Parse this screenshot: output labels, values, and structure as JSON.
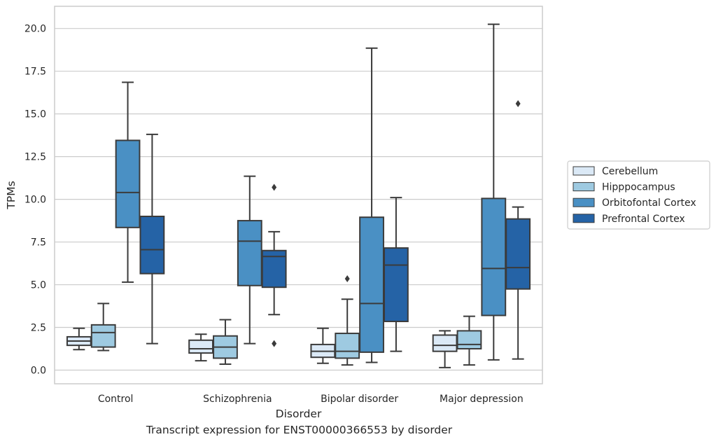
{
  "chart_data": {
    "type": "boxplot",
    "xlabel": "Disorder",
    "ylabel": "TPMs",
    "caption": "Transcript expression for ENST00000366553 by disorder",
    "categories": [
      "Control",
      "Schizophrenia",
      "Bipolar disorder",
      "Major depression"
    ],
    "ylim": [
      -0.8,
      21.3
    ],
    "yticks": [
      "0.0",
      "2.5",
      "5.0",
      "7.5",
      "10.0",
      "12.5",
      "15.0",
      "17.5",
      "20.0"
    ],
    "ytick_values": [
      0,
      2.5,
      5,
      7.5,
      10,
      12.5,
      15,
      17.5,
      20
    ],
    "grid": "horizontal",
    "legend_position": "right",
    "series": [
      {
        "name": "Cerebellum",
        "color": "#dbe9f6",
        "boxes": [
          {
            "min": 1.2,
            "q1": 1.45,
            "median": 1.7,
            "q3": 1.95,
            "max": 2.45,
            "outliers": []
          },
          {
            "min": 0.55,
            "q1": 1.0,
            "median": 1.25,
            "q3": 1.75,
            "max": 2.1,
            "outliers": []
          },
          {
            "min": 0.4,
            "q1": 0.75,
            "median": 1.1,
            "q3": 1.5,
            "max": 2.45,
            "outliers": []
          },
          {
            "min": 0.15,
            "q1": 1.1,
            "median": 1.45,
            "q3": 2.05,
            "max": 2.3,
            "outliers": []
          }
        ]
      },
      {
        "name": "Hipppocampus",
        "color": "#9ecae1",
        "boxes": [
          {
            "min": 1.15,
            "q1": 1.35,
            "median": 2.2,
            "q3": 2.65,
            "max": 3.9,
            "outliers": []
          },
          {
            "min": 0.35,
            "q1": 0.7,
            "median": 1.35,
            "q3": 2.0,
            "max": 2.95,
            "outliers": []
          },
          {
            "min": 0.3,
            "q1": 0.7,
            "median": 1.1,
            "q3": 2.15,
            "max": 4.15,
            "outliers": [
              5.35
            ]
          },
          {
            "min": 0.3,
            "q1": 1.25,
            "median": 1.5,
            "q3": 2.3,
            "max": 3.15,
            "outliers": []
          }
        ]
      },
      {
        "name": "Orbitofontal Cortex",
        "color": "#4a90c4",
        "boxes": [
          {
            "min": 5.15,
            "q1": 8.35,
            "median": 10.4,
            "q3": 13.45,
            "max": 16.85,
            "outliers": []
          },
          {
            "min": 1.55,
            "q1": 4.95,
            "median": 7.55,
            "q3": 8.75,
            "max": 11.35,
            "outliers": []
          },
          {
            "min": 0.45,
            "q1": 1.05,
            "median": 3.9,
            "q3": 8.95,
            "max": 18.85,
            "outliers": []
          },
          {
            "min": 0.6,
            "q1": 3.2,
            "median": 5.95,
            "q3": 10.05,
            "max": 20.25,
            "outliers": []
          }
        ]
      },
      {
        "name": "Prefrontal Cortex",
        "color": "#2563a6",
        "boxes": [
          {
            "min": 1.55,
            "q1": 5.65,
            "median": 7.05,
            "q3": 9.0,
            "max": 13.8,
            "outliers": []
          },
          {
            "min": 3.25,
            "q1": 4.85,
            "median": 6.65,
            "q3": 7.0,
            "max": 8.1,
            "outliers": [
              10.7,
              1.55
            ]
          },
          {
            "min": 1.1,
            "q1": 2.85,
            "median": 6.15,
            "q3": 7.15,
            "max": 10.1,
            "outliers": []
          },
          {
            "min": 0.65,
            "q1": 4.75,
            "median": 6.0,
            "q3": 8.85,
            "max": 9.55,
            "outliers": [
              15.6
            ]
          }
        ]
      }
    ]
  }
}
